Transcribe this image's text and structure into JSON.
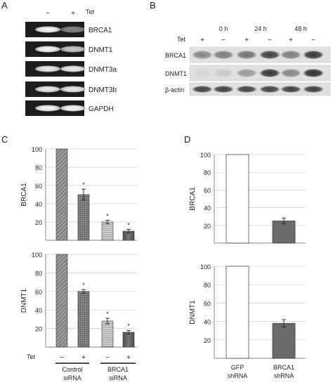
{
  "panels": {
    "A": {
      "letter": "A",
      "treatment": "Tet",
      "lane_marks": [
        "−",
        "+"
      ],
      "genes": [
        "BRCA1",
        "DNMT1",
        "DNMT3a",
        "DNMT3b",
        "GAPDH"
      ],
      "band_intensity": [
        [
          0.95,
          0.45
        ],
        [
          0.95,
          0.75
        ],
        [
          0.9,
          0.9
        ],
        [
          0.9,
          0.9
        ],
        [
          0.95,
          0.95
        ]
      ]
    },
    "B": {
      "letter": "B",
      "treatment": "Tet",
      "timepoints": [
        "0 h",
        "24 h",
        "48 h"
      ],
      "lane_marks": [
        "+",
        "−",
        "+",
        "−",
        "+",
        "−"
      ],
      "proteins": [
        "BRCA1",
        "DNMT1",
        "β-actin"
      ],
      "band_intensity": [
        [
          0.45,
          0.5,
          0.55,
          0.8,
          0.5,
          0.85
        ],
        [
          0.05,
          0.1,
          0.35,
          0.85,
          0.45,
          0.9
        ],
        [
          0.8,
          0.8,
          0.8,
          0.8,
          0.8,
          0.8
        ]
      ]
    },
    "C": {
      "letter": "C",
      "treatment": "Tet",
      "lane_marks": [
        "−",
        "+",
        "−",
        "+"
      ],
      "groups": [
        "Control siRNA",
        "BRCA1 siRNA"
      ],
      "asterisk": "*"
    },
    "D": {
      "letter": "D",
      "groups": [
        "GFP shRNA",
        "BRCA1 shRNA"
      ]
    }
  },
  "chart_data": [
    {
      "type": "bar",
      "panel": "C",
      "ylabel": "BRCA1",
      "ylim": [
        0,
        100
      ],
      "yticks": [
        20,
        40,
        60,
        80,
        100
      ],
      "categories": [
        "Control siRNA −",
        "Control siRNA +",
        "BRCA1 siRNA −",
        "BRCA1 siRNA +"
      ],
      "values": [
        100,
        50,
        20,
        10
      ],
      "errors": [
        0,
        6,
        2,
        2
      ],
      "significant": [
        false,
        true,
        true,
        true
      ],
      "grid": true
    },
    {
      "type": "bar",
      "panel": "C",
      "ylabel": "DNMT1",
      "ylim": [
        0,
        100
      ],
      "yticks": [
        20,
        40,
        60,
        80,
        100
      ],
      "categories": [
        "Control siRNA −",
        "Control siRNA +",
        "BRCA1 siRNA −",
        "BRCA1 siRNA +"
      ],
      "values": [
        100,
        60,
        28,
        16
      ],
      "errors": [
        0,
        2,
        3,
        2
      ],
      "significant": [
        false,
        true,
        true,
        true
      ],
      "grid": true
    },
    {
      "type": "bar",
      "panel": "D",
      "ylabel": "BRCA1",
      "ylim": [
        0,
        100
      ],
      "yticks": [
        20,
        40,
        60,
        80,
        100
      ],
      "categories": [
        "GFP shRNA",
        "BRCA1 shRNA"
      ],
      "values": [
        100,
        25
      ],
      "errors": [
        0,
        3
      ],
      "grid": true
    },
    {
      "type": "bar",
      "panel": "D",
      "ylabel": "DNMT1",
      "ylim": [
        0,
        100
      ],
      "yticks": [
        20,
        40,
        60,
        80,
        100
      ],
      "categories": [
        "GFP shRNA",
        "BRCA1 shRNA"
      ],
      "values": [
        100,
        38
      ],
      "errors": [
        0,
        4
      ],
      "grid": true
    }
  ]
}
